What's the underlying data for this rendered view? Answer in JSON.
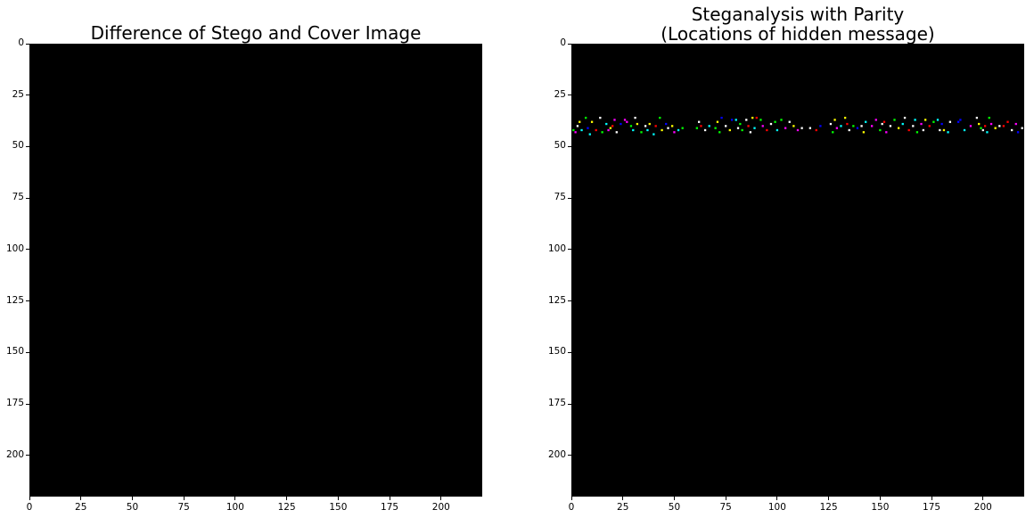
{
  "chart_data": [
    {
      "type": "heatmap",
      "title": "Difference of Stego and Cover Image",
      "xlabel": "",
      "ylabel": "",
      "xlim": [
        0,
        220
      ],
      "ylim": [
        220,
        0
      ],
      "x_ticks": [
        "0",
        "25",
        "50",
        "75",
        "100",
        "125",
        "150",
        "175",
        "200"
      ],
      "y_ticks": [
        "0",
        "25",
        "50",
        "75",
        "100",
        "125",
        "150",
        "175",
        "200"
      ],
      "background": "#000000",
      "points": []
    },
    {
      "type": "heatmap",
      "title_lines": [
        "Steganalysis with Parity",
        "(Locations of hidden message)"
      ],
      "xlabel": "",
      "ylabel": "",
      "xlim": [
        0,
        220
      ],
      "ylim": [
        220,
        0
      ],
      "x_ticks": [
        "0",
        "25",
        "50",
        "75",
        "100",
        "125",
        "150",
        "175",
        "200"
      ],
      "y_ticks": [
        "0",
        "25",
        "50",
        "75",
        "100",
        "125",
        "150",
        "175",
        "200"
      ],
      "background": "#000000",
      "note": "colored pixels mark hidden message locations, rows ~35-44",
      "points": [
        {
          "x": 1,
          "y": 42,
          "c": "#00ff00"
        },
        {
          "x": 2,
          "y": 43,
          "c": "#ff00ff"
        },
        {
          "x": 3,
          "y": 40,
          "c": "#ffffff"
        },
        {
          "x": 4,
          "y": 38,
          "c": "#ffff00"
        },
        {
          "x": 5,
          "y": 42,
          "c": "#00ffff"
        },
        {
          "x": 7,
          "y": 36,
          "c": "#00ff00"
        },
        {
          "x": 8,
          "y": 41,
          "c": "#0000ff"
        },
        {
          "x": 9,
          "y": 44,
          "c": "#00ffff"
        },
        {
          "x": 10,
          "y": 38,
          "c": "#ffff00"
        },
        {
          "x": 12,
          "y": 42,
          "c": "#ff0000"
        },
        {
          "x": 14,
          "y": 36,
          "c": "#ffffff"
        },
        {
          "x": 15,
          "y": 43,
          "c": "#00ff00"
        },
        {
          "x": 17,
          "y": 39,
          "c": "#00ffff"
        },
        {
          "x": 18,
          "y": 42,
          "c": "#ff00ff"
        },
        {
          "x": 19,
          "y": 41,
          "c": "#ffff00"
        },
        {
          "x": 20,
          "y": 40,
          "c": "#ff0000"
        },
        {
          "x": 21,
          "y": 37,
          "c": "#ff00ff"
        },
        {
          "x": 22,
          "y": 43,
          "c": "#ffffff"
        },
        {
          "x": 24,
          "y": 39,
          "c": "#0000ff"
        },
        {
          "x": 26,
          "y": 37,
          "c": "#ff00ff"
        },
        {
          "x": 27,
          "y": 38,
          "c": "#ff00ff"
        },
        {
          "x": 29,
          "y": 40,
          "c": "#00ff00"
        },
        {
          "x": 30,
          "y": 42,
          "c": "#00ffff"
        },
        {
          "x": 31,
          "y": 36,
          "c": "#ffffff"
        },
        {
          "x": 32,
          "y": 39,
          "c": "#ffff00"
        },
        {
          "x": 34,
          "y": 43,
          "c": "#00ff00"
        },
        {
          "x": 36,
          "y": 40,
          "c": "#ffffff"
        },
        {
          "x": 37,
          "y": 42,
          "c": "#00ffff"
        },
        {
          "x": 38,
          "y": 39,
          "c": "#ffff00"
        },
        {
          "x": 40,
          "y": 44,
          "c": "#00ffff"
        },
        {
          "x": 41,
          "y": 40,
          "c": "#ff0000"
        },
        {
          "x": 43,
          "y": 36,
          "c": "#00ff00"
        },
        {
          "x": 44,
          "y": 42,
          "c": "#ffff00"
        },
        {
          "x": 46,
          "y": 39,
          "c": "#0000ff"
        },
        {
          "x": 47,
          "y": 41,
          "c": "#ffffff"
        },
        {
          "x": 49,
          "y": 40,
          "c": "#ffff00"
        },
        {
          "x": 50,
          "y": 43,
          "c": "#ff00ff"
        },
        {
          "x": 52,
          "y": 42,
          "c": "#00ffff"
        },
        {
          "x": 54,
          "y": 41,
          "c": "#00ff00"
        },
        {
          "x": 61,
          "y": 41,
          "c": "#00ff00"
        },
        {
          "x": 62,
          "y": 38,
          "c": "#ffffff"
        },
        {
          "x": 63,
          "y": 40,
          "c": "#ff0000"
        },
        {
          "x": 65,
          "y": 42,
          "c": "#ffffff"
        },
        {
          "x": 67,
          "y": 40,
          "c": "#00ffff"
        },
        {
          "x": 70,
          "y": 41,
          "c": "#00ff00"
        },
        {
          "x": 71,
          "y": 38,
          "c": "#ffff00"
        },
        {
          "x": 72,
          "y": 43,
          "c": "#00ff00"
        },
        {
          "x": 73,
          "y": 36,
          "c": "#0000ff"
        },
        {
          "x": 75,
          "y": 40,
          "c": "#ffffff"
        },
        {
          "x": 77,
          "y": 42,
          "c": "#ffff00"
        },
        {
          "x": 78,
          "y": 37,
          "c": "#0000ff"
        },
        {
          "x": 80,
          "y": 37,
          "c": "#00ffff"
        },
        {
          "x": 81,
          "y": 41,
          "c": "#ffffff"
        },
        {
          "x": 82,
          "y": 39,
          "c": "#00ff00"
        },
        {
          "x": 83,
          "y": 42,
          "c": "#00ff00"
        },
        {
          "x": 85,
          "y": 37,
          "c": "#ffffff"
        },
        {
          "x": 86,
          "y": 40,
          "c": "#ff0000"
        },
        {
          "x": 87,
          "y": 43,
          "c": "#ffffff"
        },
        {
          "x": 88,
          "y": 36,
          "c": "#ffff00"
        },
        {
          "x": 89,
          "y": 41,
          "c": "#00ffff"
        },
        {
          "x": 90,
          "y": 36,
          "c": "#ff0000"
        },
        {
          "x": 92,
          "y": 37,
          "c": "#00ff00"
        },
        {
          "x": 93,
          "y": 40,
          "c": "#ff00ff"
        },
        {
          "x": 95,
          "y": 42,
          "c": "#ff0000"
        },
        {
          "x": 97,
          "y": 39,
          "c": "#ffffff"
        },
        {
          "x": 99,
          "y": 38,
          "c": "#00ff00"
        },
        {
          "x": 100,
          "y": 42,
          "c": "#00ffff"
        },
        {
          "x": 102,
          "y": 37,
          "c": "#00ff00"
        },
        {
          "x": 104,
          "y": 41,
          "c": "#ff00ff"
        },
        {
          "x": 106,
          "y": 38,
          "c": "#ffffff"
        },
        {
          "x": 108,
          "y": 40,
          "c": "#ffff00"
        },
        {
          "x": 110,
          "y": 42,
          "c": "#ff00ff"
        },
        {
          "x": 112,
          "y": 41,
          "c": "#ffffff"
        },
        {
          "x": 116,
          "y": 41,
          "c": "#ffffff"
        },
        {
          "x": 119,
          "y": 42,
          "c": "#ff0000"
        },
        {
          "x": 121,
          "y": 40,
          "c": "#0000ff"
        },
        {
          "x": 126,
          "y": 39,
          "c": "#ffffff"
        },
        {
          "x": 127,
          "y": 43,
          "c": "#00ff00"
        },
        {
          "x": 128,
          "y": 37,
          "c": "#ffff00"
        },
        {
          "x": 129,
          "y": 41,
          "c": "#ff00ff"
        },
        {
          "x": 131,
          "y": 40,
          "c": "#00ffff"
        },
        {
          "x": 133,
          "y": 36,
          "c": "#ffff00"
        },
        {
          "x": 134,
          "y": 39,
          "c": "#ff0000"
        },
        {
          "x": 135,
          "y": 42,
          "c": "#ffffff"
        },
        {
          "x": 137,
          "y": 40,
          "c": "#00ff00"
        },
        {
          "x": 139,
          "y": 41,
          "c": "#0000ff"
        },
        {
          "x": 141,
          "y": 40,
          "c": "#ffffff"
        },
        {
          "x": 142,
          "y": 43,
          "c": "#ffff00"
        },
        {
          "x": 143,
          "y": 38,
          "c": "#00ffff"
        },
        {
          "x": 146,
          "y": 40,
          "c": "#ff00ff"
        },
        {
          "x": 148,
          "y": 37,
          "c": "#ff00ff"
        },
        {
          "x": 150,
          "y": 42,
          "c": "#00ff00"
        },
        {
          "x": 151,
          "y": 39,
          "c": "#ffffff"
        },
        {
          "x": 152,
          "y": 38,
          "c": "#ff0000"
        },
        {
          "x": 153,
          "y": 43,
          "c": "#ff00ff"
        },
        {
          "x": 155,
          "y": 40,
          "c": "#ffffff"
        },
        {
          "x": 157,
          "y": 37,
          "c": "#00ff00"
        },
        {
          "x": 159,
          "y": 41,
          "c": "#ffff00"
        },
        {
          "x": 161,
          "y": 39,
          "c": "#00ffff"
        },
        {
          "x": 162,
          "y": 36,
          "c": "#ffffff"
        },
        {
          "x": 164,
          "y": 42,
          "c": "#ff0000"
        },
        {
          "x": 166,
          "y": 40,
          "c": "#ffffff"
        },
        {
          "x": 167,
          "y": 37,
          "c": "#00ffff"
        },
        {
          "x": 168,
          "y": 43,
          "c": "#00ff00"
        },
        {
          "x": 170,
          "y": 39,
          "c": "#ff00ff"
        },
        {
          "x": 171,
          "y": 42,
          "c": "#ffffff"
        },
        {
          "x": 172,
          "y": 37,
          "c": "#ffff00"
        },
        {
          "x": 174,
          "y": 40,
          "c": "#ff0000"
        },
        {
          "x": 176,
          "y": 38,
          "c": "#00ff00"
        },
        {
          "x": 178,
          "y": 37,
          "c": "#00ffff"
        },
        {
          "x": 179,
          "y": 42,
          "c": "#ffffff"
        },
        {
          "x": 180,
          "y": 39,
          "c": "#0000ff"
        },
        {
          "x": 181,
          "y": 42,
          "c": "#ffff00"
        },
        {
          "x": 183,
          "y": 43,
          "c": "#00ffff"
        },
        {
          "x": 184,
          "y": 38,
          "c": "#ffffff"
        },
        {
          "x": 188,
          "y": 38,
          "c": "#0000ff"
        },
        {
          "x": 189,
          "y": 37,
          "c": "#0000ff"
        },
        {
          "x": 191,
          "y": 42,
          "c": "#00ffff"
        },
        {
          "x": 194,
          "y": 40,
          "c": "#ff00ff"
        },
        {
          "x": 197,
          "y": 36,
          "c": "#ffffff"
        },
        {
          "x": 198,
          "y": 39,
          "c": "#ffff00"
        },
        {
          "x": 199,
          "y": 41,
          "c": "#00ff00"
        },
        {
          "x": 200,
          "y": 42,
          "c": "#ffffff"
        },
        {
          "x": 201,
          "y": 40,
          "c": "#ff0000"
        },
        {
          "x": 202,
          "y": 43,
          "c": "#00ffff"
        },
        {
          "x": 203,
          "y": 36,
          "c": "#00ff00"
        },
        {
          "x": 204,
          "y": 39,
          "c": "#ff00ff"
        },
        {
          "x": 206,
          "y": 41,
          "c": "#ffff00"
        },
        {
          "x": 208,
          "y": 40,
          "c": "#ffffff"
        },
        {
          "x": 210,
          "y": 40,
          "c": "#ff0000"
        },
        {
          "x": 212,
          "y": 38,
          "c": "#ff0000"
        },
        {
          "x": 214,
          "y": 42,
          "c": "#ffffff"
        },
        {
          "x": 216,
          "y": 39,
          "c": "#ff00ff"
        },
        {
          "x": 217,
          "y": 43,
          "c": "#0000ff"
        },
        {
          "x": 219,
          "y": 41,
          "c": "#ffffff"
        }
      ]
    }
  ]
}
